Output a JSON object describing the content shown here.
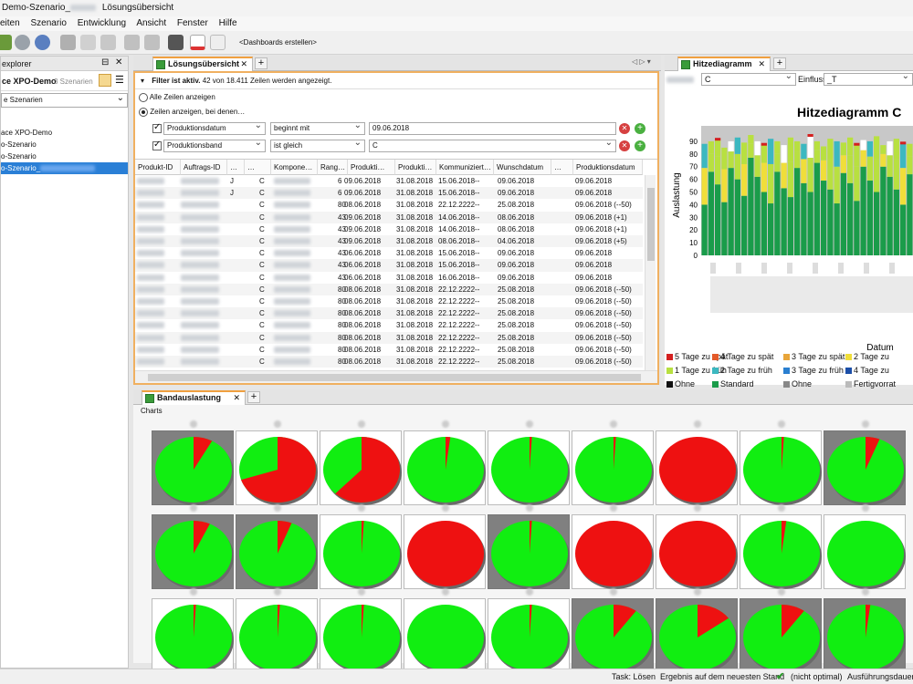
{
  "titlebar": {
    "prefix": "Demo-Szenario_",
    "suffix": "Lösungsübersicht"
  },
  "menu": [
    "eiten",
    "Szenario",
    "Entwicklung",
    "Ansicht",
    "Fenster",
    "Hilfe"
  ],
  "toolbar": {
    "dashboards_label": "<Dashboards erstellen>"
  },
  "explorer": {
    "title": "explorer",
    "workspace": "ce XPO-Demo",
    "count": "3 Szenarien",
    "filter_value": "e Szenarien",
    "items": [
      "ace XPO-Demo",
      "o-Szenario",
      "o-Szenario",
      "o-Szenario_"
    ]
  },
  "solution": {
    "tab": "Lösungsübersicht",
    "filter_title": "Filter ist aktiv.",
    "filter_info": "42 von 18.411 Zeilen werden angezeigt.",
    "radio_all": "Alle Zeilen anzeigen",
    "radio_some": "Zeilen anzeigen, bei denen…",
    "conditions": [
      {
        "field": "Produktionsdatum",
        "op": "beginnt mit",
        "value": "09.06.2018"
      },
      {
        "field": "Produktionsband",
        "op": "ist gleich",
        "value": "C"
      }
    ],
    "columns": [
      "Produkt-ID",
      "Auftrags-ID",
      "…",
      "…",
      "Kompone…",
      "Rang…",
      "Produkti…",
      "Produkti…",
      "Kommuniziert…",
      "Wunschdatum",
      "…",
      "Produktionsdatum"
    ],
    "rows": [
      {
        "c1": "J",
        "c2": "C",
        "rang": "6",
        "p1": "09.06.2018",
        "p2": "31.08.2018",
        "k": "15.06.2018--",
        "w": "09.06.2018",
        "pd": "09.06.2018"
      },
      {
        "c1": "J",
        "c2": "C",
        "rang": "6",
        "p1": "09.06.2018",
        "p2": "31.08.2018",
        "k": "15.06.2018--",
        "w": "09.06.2018",
        "pd": "09.06.2018"
      },
      {
        "c1": "",
        "c2": "C",
        "rang": "80",
        "p1": "08.06.2018",
        "p2": "31.08.2018",
        "k": "22.12.2222--",
        "w": "25.08.2018",
        "pd": "09.06.2018 (--50)"
      },
      {
        "c1": "",
        "c2": "C",
        "rang": "43",
        "p1": "09.06.2018",
        "p2": "31.08.2018",
        "k": "14.06.2018--",
        "w": "08.06.2018",
        "pd": "09.06.2018 (+1)"
      },
      {
        "c1": "",
        "c2": "C",
        "rang": "43",
        "p1": "09.06.2018",
        "p2": "31.08.2018",
        "k": "14.06.2018--",
        "w": "08.06.2018",
        "pd": "09.06.2018 (+1)"
      },
      {
        "c1": "",
        "c2": "C",
        "rang": "43",
        "p1": "09.06.2018",
        "p2": "31.08.2018",
        "k": "08.06.2018--",
        "w": "04.06.2018",
        "pd": "09.06.2018 (+5)"
      },
      {
        "c1": "",
        "c2": "C",
        "rang": "43",
        "p1": "06.06.2018",
        "p2": "31.08.2018",
        "k": "15.06.2018--",
        "w": "09.06.2018",
        "pd": "09.06.2018"
      },
      {
        "c1": "",
        "c2": "C",
        "rang": "43",
        "p1": "06.06.2018",
        "p2": "31.08.2018",
        "k": "15.06.2018--",
        "w": "09.06.2018",
        "pd": "09.06.2018"
      },
      {
        "c1": "",
        "c2": "C",
        "rang": "43",
        "p1": "06.06.2018",
        "p2": "31.08.2018",
        "k": "16.06.2018--",
        "w": "09.06.2018",
        "pd": "09.06.2018"
      },
      {
        "c1": "",
        "c2": "C",
        "rang": "80",
        "p1": "08.06.2018",
        "p2": "31.08.2018",
        "k": "22.12.2222--",
        "w": "25.08.2018",
        "pd": "09.06.2018 (--50)"
      },
      {
        "c1": "",
        "c2": "C",
        "rang": "80",
        "p1": "08.06.2018",
        "p2": "31.08.2018",
        "k": "22.12.2222--",
        "w": "25.08.2018",
        "pd": "09.06.2018 (--50)"
      },
      {
        "c1": "",
        "c2": "C",
        "rang": "80",
        "p1": "08.06.2018",
        "p2": "31.08.2018",
        "k": "22.12.2222--",
        "w": "25.08.2018",
        "pd": "09.06.2018 (--50)"
      },
      {
        "c1": "",
        "c2": "C",
        "rang": "80",
        "p1": "08.06.2018",
        "p2": "31.08.2018",
        "k": "22.12.2222--",
        "w": "25.08.2018",
        "pd": "09.06.2018 (--50)"
      },
      {
        "c1": "",
        "c2": "C",
        "rang": "80",
        "p1": "08.06.2018",
        "p2": "31.08.2018",
        "k": "22.12.2222--",
        "w": "25.08.2018",
        "pd": "09.06.2018 (--50)"
      },
      {
        "c1": "",
        "c2": "C",
        "rang": "80",
        "p1": "08.06.2018",
        "p2": "31.08.2018",
        "k": "22.12.2222--",
        "w": "25.08.2018",
        "pd": "09.06.2018 (--50)"
      },
      {
        "c1": "",
        "c2": "C",
        "rang": "80",
        "p1": "08.06.2018",
        "p2": "31.08.2018",
        "k": "22.12.2222--",
        "w": "25.08.2018",
        "pd": "09.06.2018 (--50)"
      }
    ]
  },
  "heatmap": {
    "tab": "Hitzediagramm",
    "select_value": "C",
    "einfluss_label": "Einfluss",
    "einfluss_value": "_T",
    "title": "Hitzediagramm C",
    "ylabel": "Auslastung",
    "xlabel": "Datum",
    "legend": [
      {
        "label": "5 Tage zu spät",
        "color": "#d42020"
      },
      {
        "label": "4 Tage zu spät",
        "color": "#e35a2a"
      },
      {
        "label": "3 Tage zu spät",
        "color": "#e8a53a"
      },
      {
        "label": "2 Tage zu",
        "color": "#f0de3a"
      },
      {
        "label": "1 Tage zu früh",
        "color": "#b8e040"
      },
      {
        "label": "2 Tage zu früh",
        "color": "#3cb8c0"
      },
      {
        "label": "3 Tage zu früh",
        "color": "#2a7fd0"
      },
      {
        "label": "4 Tage zu",
        "color": "#1c4fa8"
      },
      {
        "label": "Ohne",
        "color": "#111111"
      },
      {
        "label": "Standard",
        "color": "#1a9c4a"
      },
      {
        "label": "Ohne",
        "color": "#888888"
      },
      {
        "label": "Fertigvorrat",
        "color": "#bbbbbb"
      }
    ]
  },
  "chart_data": {
    "type": "bar",
    "title": "Hitzediagramm C",
    "xlabel": "Datum",
    "ylabel": "Auslastung",
    "ylim": [
      0,
      95
    ],
    "yticks": [
      0,
      10,
      20,
      30,
      40,
      50,
      60,
      70,
      80,
      90
    ],
    "values": [
      88,
      90,
      92,
      85,
      90,
      93,
      89,
      95,
      90,
      88,
      92,
      90,
      87,
      93,
      90,
      88,
      95,
      90,
      86,
      92,
      90,
      89,
      93,
      88,
      91,
      90,
      94,
      87,
      90,
      92,
      89,
      88
    ]
  },
  "band": {
    "tab": "Bandauslastung",
    "charts_label": "Charts",
    "red_fractions": [
      [
        0.08,
        0.7,
        0.62,
        0.02,
        0.01,
        0.01,
        1.0,
        0.01,
        0.06,
        0.0
      ],
      [
        0.07,
        0.06,
        0.01,
        1.0,
        0.01,
        1.0,
        1.0,
        0.02,
        0.0,
        0.0
      ],
      [
        0.01,
        0.01,
        0.01,
        0.0,
        0.01,
        0.1,
        0.15,
        0.1,
        0.02,
        0.0
      ]
    ],
    "gray_bg": [
      [
        true,
        false,
        false,
        false,
        false,
        false,
        false,
        false,
        true,
        false
      ],
      [
        true,
        true,
        false,
        false,
        true,
        false,
        false,
        false,
        false,
        false
      ],
      [
        false,
        false,
        false,
        false,
        false,
        true,
        true,
        true,
        true,
        false
      ]
    ]
  },
  "status": {
    "task": "Task: Lösen",
    "result": "Ergebnis auf dem neuesten Stand",
    "optimal": "(nicht optimal)",
    "duration": "Ausführungsdauer:"
  }
}
